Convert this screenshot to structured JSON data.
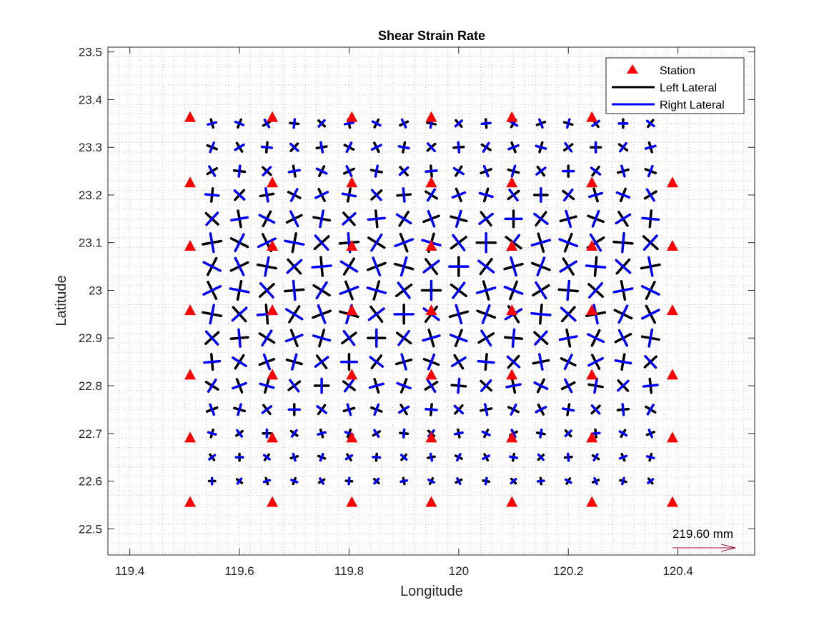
{
  "chart_data": {
    "type": "scatter",
    "title": "Shear Strain Rate",
    "xlabel": "Longitude",
    "ylabel": "Latitude",
    "xlim": [
      119.36,
      120.54
    ],
    "ylim": [
      22.445,
      23.51
    ],
    "xticks": [
      119.4,
      119.6,
      119.8,
      120,
      120.2,
      120.4
    ],
    "xtick_labels": [
      "119.4",
      "119.6",
      "119.8",
      "120",
      "120.2",
      "120.4"
    ],
    "yticks": [
      22.5,
      22.6,
      22.7,
      22.8,
      22.9,
      23,
      23.1,
      23.2,
      23.3,
      23.4,
      23.5
    ],
    "ytick_labels": [
      "22.5",
      "22.6",
      "22.7",
      "22.8",
      "22.9",
      "23",
      "23.1",
      "23.2",
      "23.3",
      "23.4",
      "23.5"
    ],
    "grid": "dotted, minor",
    "legend_position": "top-right",
    "legend": [
      {
        "label": "Station",
        "marker": "triangle",
        "color": "#ff0000"
      },
      {
        "label": "Left Lateral",
        "marker": "line",
        "color": "#000000"
      },
      {
        "label": "Right Lateral",
        "marker": "line",
        "color": "#0000ff"
      }
    ],
    "stations": {
      "name": "Station",
      "color": "#ff0000",
      "lon": [
        119.51,
        119.66,
        119.805,
        119.95,
        120.097,
        120.243,
        120.39
      ],
      "lat": [
        22.555,
        22.69,
        22.822,
        22.957,
        23.092,
        23.225,
        23.362
      ],
      "missing": [
        [
          120.39,
          23.362
        ]
      ]
    },
    "grid_points": {
      "lon_start": 119.55,
      "lon_end": 120.35,
      "lon_step": 0.05,
      "lat_start": 22.6,
      "lat_end": 23.35,
      "lat_step": 0.05
    },
    "strain_cross_size_by_lat": {
      "22.6": 0.2,
      "22.65": 0.25,
      "22.7": 0.3,
      "22.75": 0.5,
      "22.8": 0.7,
      "22.85": 0.8,
      "22.9": 0.9,
      "22.95": 1.0,
      "23.0": 1.0,
      "23.05": 1.0,
      "23.1": 1.0,
      "23.15": 0.85,
      "23.2": 0.65,
      "23.25": 0.5,
      "23.3": 0.45,
      "23.35": 0.35
    },
    "left_lateral_color": "#000000",
    "right_lateral_color": "#0000ff",
    "reference_vector": {
      "label": "219.60 mm",
      "lon_start": 120.39,
      "lon_end": 120.505,
      "lat": 22.46,
      "color": "#a0103a"
    }
  }
}
